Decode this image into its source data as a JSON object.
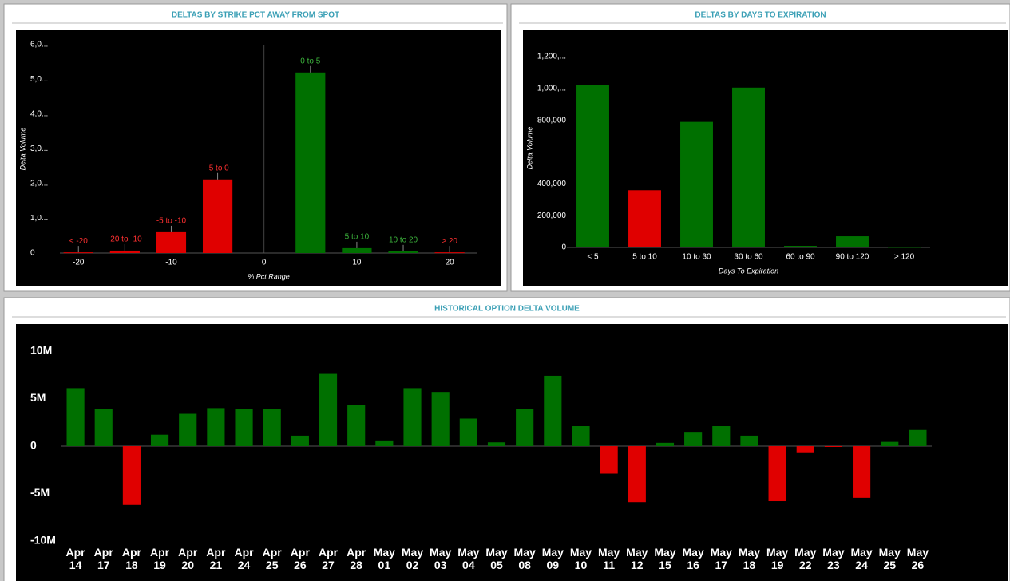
{
  "chart_data": [
    {
      "type": "bar",
      "title": "DELTAS BY STRIKE PCT AWAY FROM SPOT",
      "x_label": "% Pct Range",
      "y_label": "Delta Volume",
      "x": [
        -20,
        -15,
        -10,
        -5,
        5,
        10,
        15,
        20
      ],
      "categories": [
        "< -20",
        "-20 to -10",
        "-5 to -10",
        "-5 to 0",
        "0 to 5",
        "5 to 10",
        "10 to 20",
        "> 20"
      ],
      "values": [
        20000,
        70000,
        600000,
        2120000,
        5200000,
        140000,
        50000,
        20000
      ],
      "colors": [
        "#e00000",
        "#e00000",
        "#e00000",
        "#e00000",
        "#007000",
        "#007000",
        "#007000",
        "#e00000"
      ],
      "xlim": [
        -22,
        23
      ],
      "xticks": [
        -20,
        -10,
        0,
        10,
        20
      ],
      "ylim": [
        0,
        6000000
      ],
      "yticks": [
        0,
        {
          "value": 1000000,
          "label": "1,0..."
        },
        {
          "value": 2000000,
          "label": "2,0..."
        },
        {
          "value": 3000000,
          "label": "3,0..."
        },
        {
          "value": 4000000,
          "label": "4,0..."
        },
        {
          "value": 5000000,
          "label": "5,0..."
        },
        {
          "value": 6000000,
          "label": "6,0..."
        }
      ]
    },
    {
      "type": "bar",
      "title": "DELTAS BY DAYS TO EXPIRATION",
      "x_label": "Days To Expiration",
      "y_label": "Delta Volume",
      "categories": [
        "< 5",
        "5 to 10",
        "10 to 30",
        "30 to 60",
        "60 to 90",
        "90 to 120",
        "> 120"
      ],
      "values": [
        1020000,
        360000,
        790000,
        1005000,
        10000,
        70000,
        3000
      ],
      "colors": [
        "#007000",
        "#e00000",
        "#007000",
        "#007000",
        "#007000",
        "#007000",
        "#007000"
      ],
      "ylim": [
        0,
        1250000
      ],
      "yticks": [
        0,
        {
          "value": 200000,
          "label": "200,000"
        },
        {
          "value": 400000,
          "label": "400,000"
        },
        {
          "value": 800000,
          "label": "800,000"
        },
        {
          "value": 1000000,
          "label": "1,000,..."
        },
        {
          "value": 1200000,
          "label": "1,200,..."
        }
      ]
    },
    {
      "type": "bar",
      "title": "HISTORICAL OPTION DELTA VOLUME",
      "categories": [
        "Apr 14",
        "Apr 17",
        "Apr 18",
        "Apr 19",
        "Apr 20",
        "Apr 21",
        "Apr 24",
        "Apr 25",
        "Apr 26",
        "Apr 27",
        "Apr 28",
        "May 01",
        "May 02",
        "May 03",
        "May 04",
        "May 05",
        "May 08",
        "May 09",
        "May 10",
        "May 11",
        "May 12",
        "May 15",
        "May 16",
        "May 17",
        "May 18",
        "May 19",
        "May 22",
        "May 23",
        "May 24",
        "May 25",
        "May 26"
      ],
      "values": [
        6100000,
        3950000,
        -6200000,
        1200000,
        3400000,
        4000000,
        3950000,
        3900000,
        1100000,
        7600000,
        4300000,
        600000,
        6100000,
        5700000,
        2900000,
        400000,
        3950000,
        7400000,
        2100000,
        -2900000,
        -5900000,
        350000,
        1500000,
        2100000,
        1100000,
        -5800000,
        -650000,
        -50000,
        -5450000,
        450000,
        1700000
      ],
      "positive_color": "#007000",
      "negative_color": "#e00000",
      "ylim": [
        -10000000,
        10000000
      ],
      "yticks": [
        {
          "value": -10000000,
          "label": "-10M"
        },
        {
          "value": -5000000,
          "label": "-5M"
        },
        0,
        {
          "value": 5000000,
          "label": "5M"
        },
        {
          "value": 10000000,
          "label": "10M"
        }
      ]
    }
  ]
}
